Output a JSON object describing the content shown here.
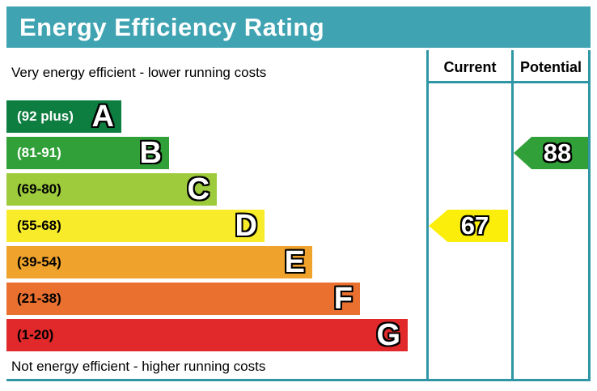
{
  "title": "Energy Efficiency Rating",
  "colors": {
    "title_bg": "#3FA3B2",
    "title_text": "#FFFFFF",
    "border": "#2E96A5"
  },
  "table": {
    "columns": [
      "Current",
      "Potential"
    ],
    "top_note": "Very energy efficient - lower running costs",
    "bottom_note": "Not energy efficient - higher running costs"
  },
  "chart_data": {
    "type": "bar",
    "title": "Energy Efficiency Rating",
    "categories": [
      "A",
      "B",
      "C",
      "D",
      "E",
      "F",
      "G"
    ],
    "bands": [
      {
        "letter": "A",
        "label": "(92 plus)",
        "min": 92,
        "max": 100,
        "color": "#0D7D40",
        "label_color": "#FFFFFF"
      },
      {
        "letter": "B",
        "label": "(81-91)",
        "min": 81,
        "max": 91,
        "color": "#31A038",
        "label_color": "#FFFFFF"
      },
      {
        "letter": "C",
        "label": "(69-80)",
        "min": 69,
        "max": 80,
        "color": "#9DCB3C",
        "label_color": "#000000"
      },
      {
        "letter": "D",
        "label": "(55-68)",
        "min": 55,
        "max": 68,
        "color": "#F8EC2A",
        "label_color": "#000000"
      },
      {
        "letter": "E",
        "label": "(39-54)",
        "min": 39,
        "max": 54,
        "color": "#F0A32C",
        "label_color": "#000000"
      },
      {
        "letter": "F",
        "label": "(21-38)",
        "min": 21,
        "max": 38,
        "color": "#EA7030",
        "label_color": "#000000"
      },
      {
        "letter": "G",
        "label": "(1-20)",
        "min": 1,
        "max": 20,
        "color": "#E1292B",
        "label_color": "#000000"
      }
    ],
    "markers": [
      {
        "name": "Current",
        "value": 67,
        "color": "#FBEE0A"
      },
      {
        "name": "Potential",
        "value": 88,
        "color": "#31A038"
      }
    ],
    "legend_position": "none",
    "grid": false
  }
}
